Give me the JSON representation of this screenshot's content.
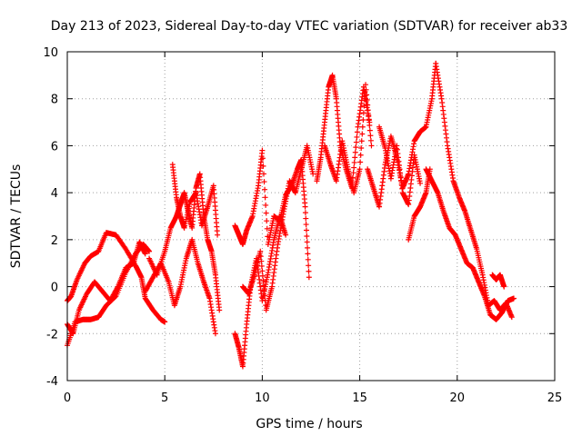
{
  "chart_data": {
    "type": "scatter",
    "title": "Day 213 of 2023, Sidereal Day-to-day VTEC variation (SDTVAR) for receiver ab33",
    "xlabel": "GPS time / hours",
    "ylabel": "SDTVAR / TECUs",
    "xlim": [
      0,
      25
    ],
    "ylim": [
      -4,
      10
    ],
    "xticks": [
      "0",
      "5",
      "10",
      "15",
      "20",
      "25"
    ],
    "yticks": [
      "-4",
      "-2",
      "0",
      "2",
      "4",
      "6",
      "8",
      "10"
    ],
    "grid": true,
    "marker": "+",
    "color": "#ff0000",
    "series": [
      {
        "name": "SDTVAR",
        "tracks": [
          {
            "x": [
              0.0,
              0.2,
              0.5,
              0.9,
              1.2,
              1.6,
              2.0,
              2.5,
              3.0,
              3.5,
              3.8,
              4.0,
              4.4,
              4.8,
              5.0
            ],
            "y": [
              -0.6,
              -0.4,
              0.3,
              1.0,
              1.3,
              1.5,
              2.3,
              2.2,
              1.6,
              0.9,
              0.4,
              -0.5,
              -1.0,
              -1.4,
              -1.5
            ]
          },
          {
            "x": [
              0.0,
              0.4,
              0.8,
              1.2,
              1.6,
              2.0,
              2.5,
              3.0,
              3.5,
              3.9,
              4.2
            ],
            "y": [
              -2.5,
              -1.5,
              -1.4,
              -1.4,
              -1.3,
              -0.8,
              -0.4,
              0.6,
              1.4,
              1.8,
              1.5
            ]
          },
          {
            "x": [
              0.0,
              0.3,
              0.6,
              1.0,
              1.4,
              1.8,
              2.2,
              2.6,
              3.0,
              3.4,
              3.7,
              4.0
            ],
            "y": [
              -1.6,
              -2.0,
              -1.0,
              -0.3,
              0.2,
              -0.2,
              -0.6,
              0.0,
              0.8,
              1.0,
              1.9,
              1.4
            ]
          },
          {
            "x": [
              4.2,
              4.6,
              5.0,
              5.3,
              5.6,
              5.8,
              6.0,
              6.2,
              6.4,
              6.6,
              6.8,
              7.0,
              7.2,
              7.4,
              7.6,
              7.8
            ],
            "y": [
              1.2,
              0.5,
              1.5,
              2.5,
              3.0,
              3.5,
              4.0,
              3.2,
              2.5,
              4.2,
              4.8,
              3.0,
              2.0,
              1.5,
              0.5,
              -1.0
            ]
          },
          {
            "x": [
              5.4,
              5.6,
              5.8,
              6.0,
              6.3,
              6.6,
              6.9,
              7.2,
              7.5,
              7.7
            ],
            "y": [
              5.2,
              3.8,
              3.0,
              2.5,
              3.6,
              4.0,
              2.6,
              3.4,
              4.3,
              2.2
            ]
          },
          {
            "x": [
              4.0,
              4.4,
              4.8,
              5.2,
              5.5,
              5.8,
              6.1,
              6.4,
              6.7,
              7.0,
              7.3,
              7.6
            ],
            "y": [
              -0.2,
              0.4,
              1.0,
              0.2,
              -0.8,
              0.0,
              1.2,
              2.0,
              1.0,
              0.2,
              -0.5,
              -2.0
            ]
          },
          {
            "x": [
              8.6,
              8.8,
              9.0,
              9.2,
              9.5,
              9.8,
              10.0,
              10.3,
              10.6,
              10.9,
              11.2,
              11.5,
              11.8,
              12.0,
              12.2,
              12.4
            ],
            "y": [
              2.6,
              2.2,
              1.8,
              2.4,
              3.0,
              4.3,
              5.8,
              1.8,
              3.0,
              2.8,
              3.9,
              4.3,
              5.0,
              5.4,
              3.4,
              0.4
            ]
          },
          {
            "x": [
              8.6,
              8.8,
              9.0,
              9.2,
              9.4,
              9.7,
              10.0,
              10.3,
              10.6,
              10.9,
              11.2
            ],
            "y": [
              -2.0,
              -2.6,
              -3.4,
              -1.6,
              0.0,
              1.2,
              -0.6,
              0.6,
              2.0,
              3.0,
              2.2
            ]
          },
          {
            "x": [
              9.0,
              9.3,
              9.6,
              9.9,
              10.2,
              10.5,
              10.8,
              11.1,
              11.4,
              11.7,
              12.0,
              12.3,
              12.6
            ],
            "y": [
              0.0,
              -0.3,
              0.5,
              1.5,
              -1.0,
              0.0,
              1.8,
              3.2,
              4.5,
              4.0,
              5.0,
              6.0,
              4.8
            ]
          },
          {
            "x": [
              12.8,
              13.0,
              13.2,
              13.4,
              13.6,
              13.8,
              14.0,
              14.3,
              14.6,
              14.9,
              15.2,
              15.5
            ],
            "y": [
              4.5,
              5.5,
              7.0,
              8.5,
              9.0,
              8.0,
              6.0,
              5.0,
              4.2,
              6.8,
              8.5,
              7.0
            ]
          },
          {
            "x": [
              13.2,
              13.5,
              13.8,
              14.1,
              14.4,
              14.7,
              15.0,
              15.3,
              15.6
            ],
            "y": [
              6.0,
              5.2,
              4.5,
              6.2,
              5.0,
              4.0,
              5.0,
              8.6,
              6.0
            ]
          },
          {
            "x": [
              15.4,
              15.7,
              16.0,
              16.3,
              16.6,
              16.9,
              17.2,
              17.5,
              17.8,
              18.1,
              18.4,
              18.7,
              18.9
            ],
            "y": [
              5.0,
              4.2,
              3.4,
              5.2,
              6.4,
              5.5,
              4.2,
              4.8,
              6.2,
              6.6,
              6.8,
              8.0,
              9.5
            ]
          },
          {
            "x": [
              16.0,
              16.3,
              16.6,
              16.9,
              17.2,
              17.5,
              17.8,
              18.1
            ],
            "y": [
              6.8,
              5.9,
              4.6,
              6.0,
              4.0,
              3.5,
              5.6,
              4.4
            ]
          },
          {
            "x": [
              17.5,
              17.8,
              18.1,
              18.4,
              18.6
            ],
            "y": [
              2.0,
              3.0,
              3.4,
              4.0,
              5.0
            ]
          },
          {
            "x": [
              18.9,
              19.2,
              19.5,
              19.8,
              20.1,
              20.4,
              20.7,
              21.0,
              21.3,
              21.6,
              21.9,
              22.2,
              22.5,
              22.8
            ],
            "y": [
              9.5,
              8.0,
              6.0,
              4.5,
              3.8,
              3.2,
              2.4,
              1.6,
              0.5,
              -0.8,
              -0.6,
              -1.0,
              -0.7,
              -1.3
            ]
          },
          {
            "x": [
              18.4,
              18.7,
              19.0,
              19.3,
              19.6,
              19.9,
              20.2,
              20.5,
              20.8,
              21.1,
              21.4,
              21.7,
              22.0,
              22.3,
              22.6,
              22.9
            ],
            "y": [
              5.0,
              4.5,
              4.0,
              3.2,
              2.5,
              2.2,
              1.6,
              1.0,
              0.8,
              0.2,
              -0.4,
              -1.2,
              -1.4,
              -1.1,
              -0.6,
              -0.5
            ]
          },
          {
            "x": [
              21.8,
              22.0,
              22.2,
              22.4
            ],
            "y": [
              0.5,
              0.3,
              0.5,
              0.0
            ]
          }
        ]
      }
    ]
  }
}
